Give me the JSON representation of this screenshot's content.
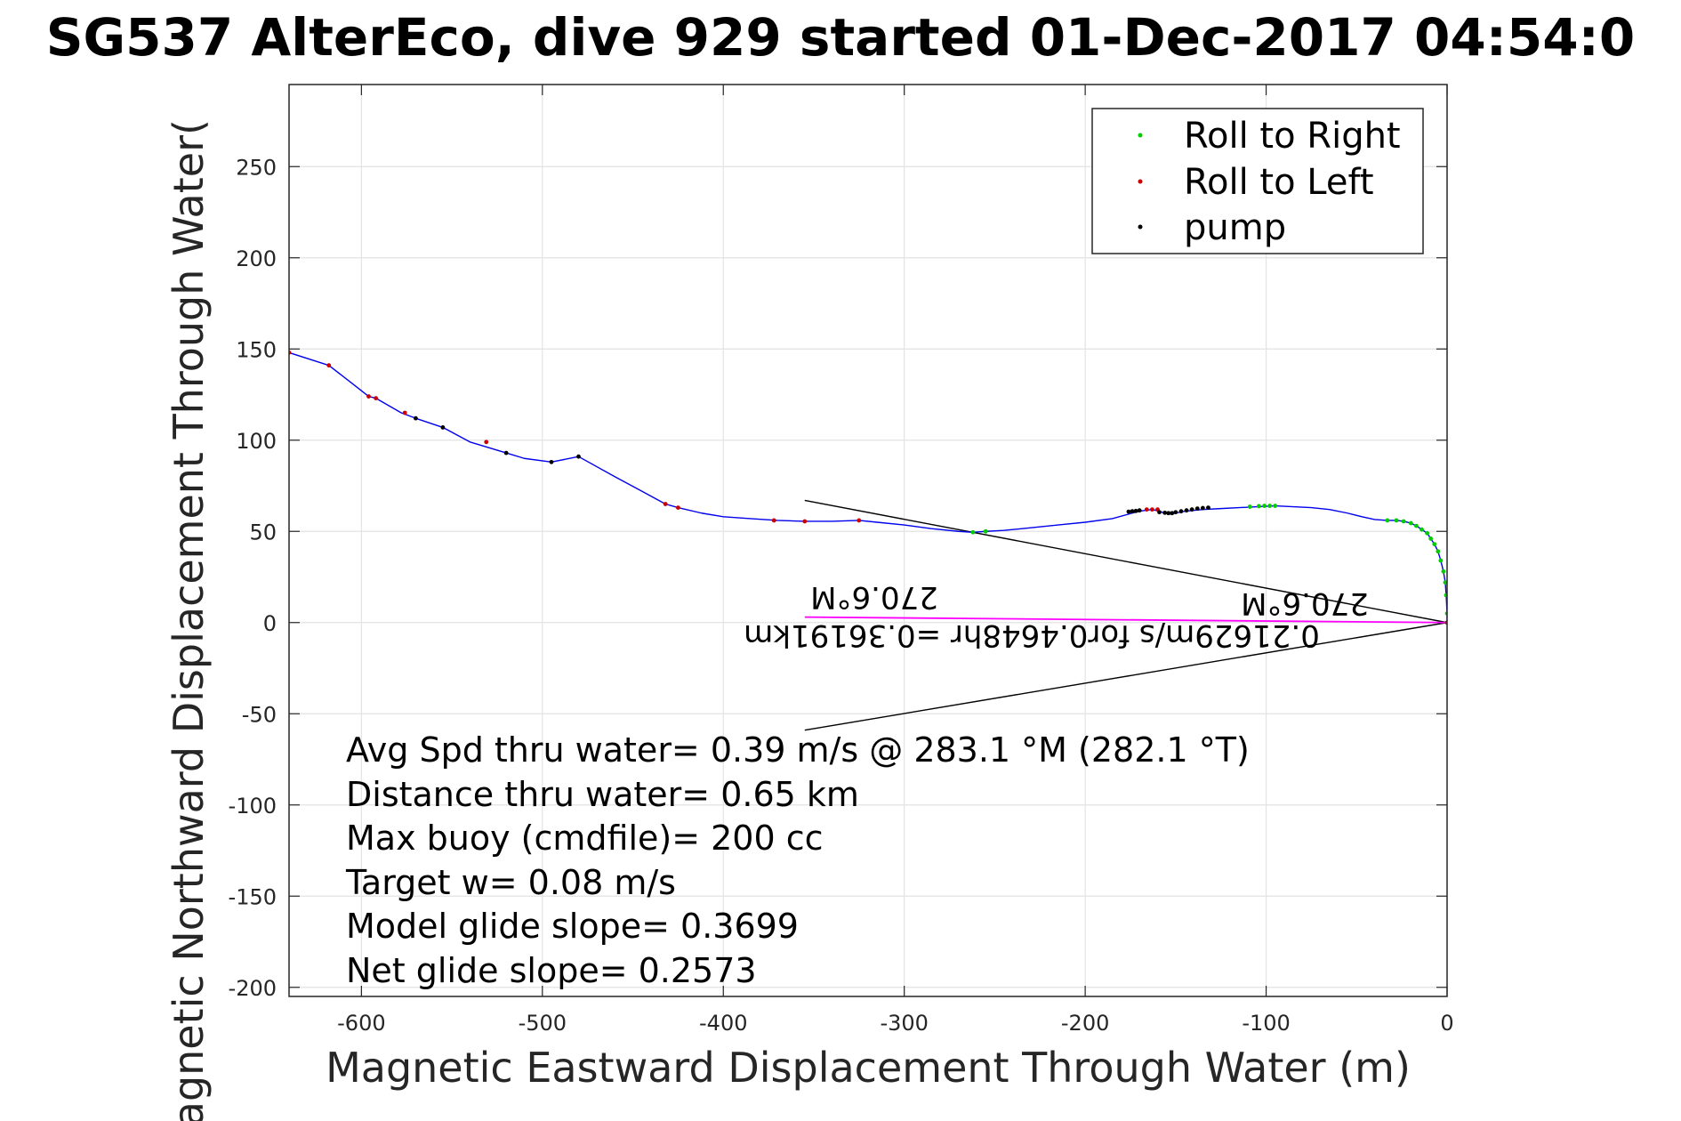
{
  "chart_data": {
    "type": "line",
    "title": "SG537 AlterEco, dive 929 started 01-Dec-2017 04:54:0",
    "xlabel": "Magnetic Eastward Displacement Through Water (m)",
    "ylabel": "Magnetic Northward Displacement Through Water(",
    "xlim": [
      -640,
      0
    ],
    "ylim": [
      -205,
      295
    ],
    "xticks": [
      -600,
      -500,
      -400,
      -300,
      -200,
      -100,
      0
    ],
    "yticks": [
      -200,
      -150,
      -100,
      -50,
      0,
      50,
      100,
      150,
      200,
      250
    ],
    "grid": true,
    "legend": {
      "placement": "top-right",
      "entries": [
        {
          "label": "Roll to Right",
          "color": "#00cc00"
        },
        {
          "label": "Roll to Left",
          "color": "#cc0000"
        },
        {
          "label": "pump",
          "color": "#000000"
        }
      ]
    },
    "track": {
      "color": "#0000ee",
      "x": [
        0,
        0,
        -0.5,
        -1,
        -2,
        -3.5,
        -5,
        -7,
        -9,
        -11,
        -14,
        -17,
        -20,
        -24,
        -28,
        -33,
        -40,
        -47,
        -55,
        -65,
        -75,
        -85,
        -95,
        -105,
        -115,
        -125,
        -135,
        -140,
        -145,
        -150,
        -153,
        -156,
        -159,
        -163,
        -167,
        -170,
        -174,
        -185,
        -200,
        -215,
        -230,
        -245,
        -255,
        -262,
        -270,
        -285,
        -300,
        -315,
        -325,
        -340,
        -355,
        -370,
        -385,
        -400,
        -412,
        -425,
        -432,
        -445,
        -460,
        -480,
        -495,
        -510,
        -520,
        -530,
        -540,
        -555,
        -570,
        -578,
        -592,
        -596,
        -605,
        -618,
        -640
      ],
      "y": [
        0,
        5,
        15,
        22,
        28,
        34,
        39,
        43,
        46,
        49,
        51,
        53,
        54.5,
        55.5,
        56,
        56,
        56.5,
        58,
        60,
        62,
        63,
        63.5,
        64,
        63.5,
        63,
        62.5,
        62,
        61.5,
        61,
        60,
        59.5,
        60,
        61,
        62,
        61.5,
        61,
        60,
        57,
        55,
        53.5,
        52,
        50.5,
        50,
        49.5,
        50,
        51.5,
        53.5,
        55,
        56,
        55.5,
        55.5,
        56,
        57,
        58,
        60,
        63,
        65,
        72,
        80,
        91,
        88,
        90,
        93,
        96,
        99,
        107,
        112,
        115,
        123,
        124,
        131,
        141,
        148
      ]
    },
    "roll_right_points": {
      "color": "#00cc00",
      "x": [
        0,
        0,
        -0.5,
        -1,
        -2,
        -3.5,
        -5,
        -7,
        -9,
        -11,
        -14,
        -17,
        -20,
        -24,
        -28,
        -33,
        -95,
        -98,
        -101,
        -104,
        -109,
        -255,
        -262
      ],
      "y": [
        0,
        5,
        15,
        22,
        28,
        34,
        39,
        43,
        46,
        49,
        51,
        53,
        54.5,
        55.5,
        56,
        56,
        64,
        64,
        64,
        63.8,
        63.5,
        50,
        49.5
      ]
    },
    "roll_left_points": {
      "color": "#cc0000",
      "x": [
        0,
        -160,
        -163,
        -166,
        -325,
        -355,
        -372,
        -425,
        -432,
        -531,
        -576,
        -592,
        -596,
        -618,
        -640
      ],
      "y": [
        0,
        62,
        62,
        62,
        56,
        55.5,
        56,
        63,
        65,
        99,
        115,
        123,
        124,
        141,
        148
      ]
    },
    "pump_points": {
      "color": "#000000",
      "x": [
        -132,
        -135,
        -138,
        -141,
        -144,
        -147,
        -150,
        -152,
        -154,
        -156,
        -159,
        -170,
        -172,
        -174,
        -176,
        -480,
        -495,
        -520,
        -555,
        -570
      ],
      "y": [
        63,
        62.8,
        62.5,
        62,
        61.5,
        61,
        60.5,
        60,
        60,
        60.2,
        60.5,
        61.5,
        61.2,
        61,
        60.8,
        91,
        88,
        93,
        107,
        112
      ]
    },
    "current_vector": {
      "color": "#ff00ff",
      "x": [
        0,
        -355
      ],
      "y": [
        0,
        3
      ]
    },
    "uncertainty_cone": {
      "color": "#000000",
      "upper": {
        "x": [
          0,
          -355
        ],
        "y": [
          0,
          67
        ]
      },
      "lower": {
        "x": [
          0,
          -355
        ],
        "y": [
          0,
          -59
        ]
      }
    },
    "annotations": {
      "current_speed": "0.21629m/s for0.4648hr =0.36191km",
      "heading_near": "270.6°M",
      "heading_far": "270.6°M"
    },
    "info_lines": [
      "Avg Spd thru water=  0.39 m/s @ 283.1 °M (282.1 °T)",
      "Distance thru water=  0.65 km",
      "Max buoy (cmdfile)= 200 cc",
      "Target w= 0.08 m/s",
      "Model glide slope= 0.3699",
      "Net glide slope= 0.2573"
    ]
  }
}
